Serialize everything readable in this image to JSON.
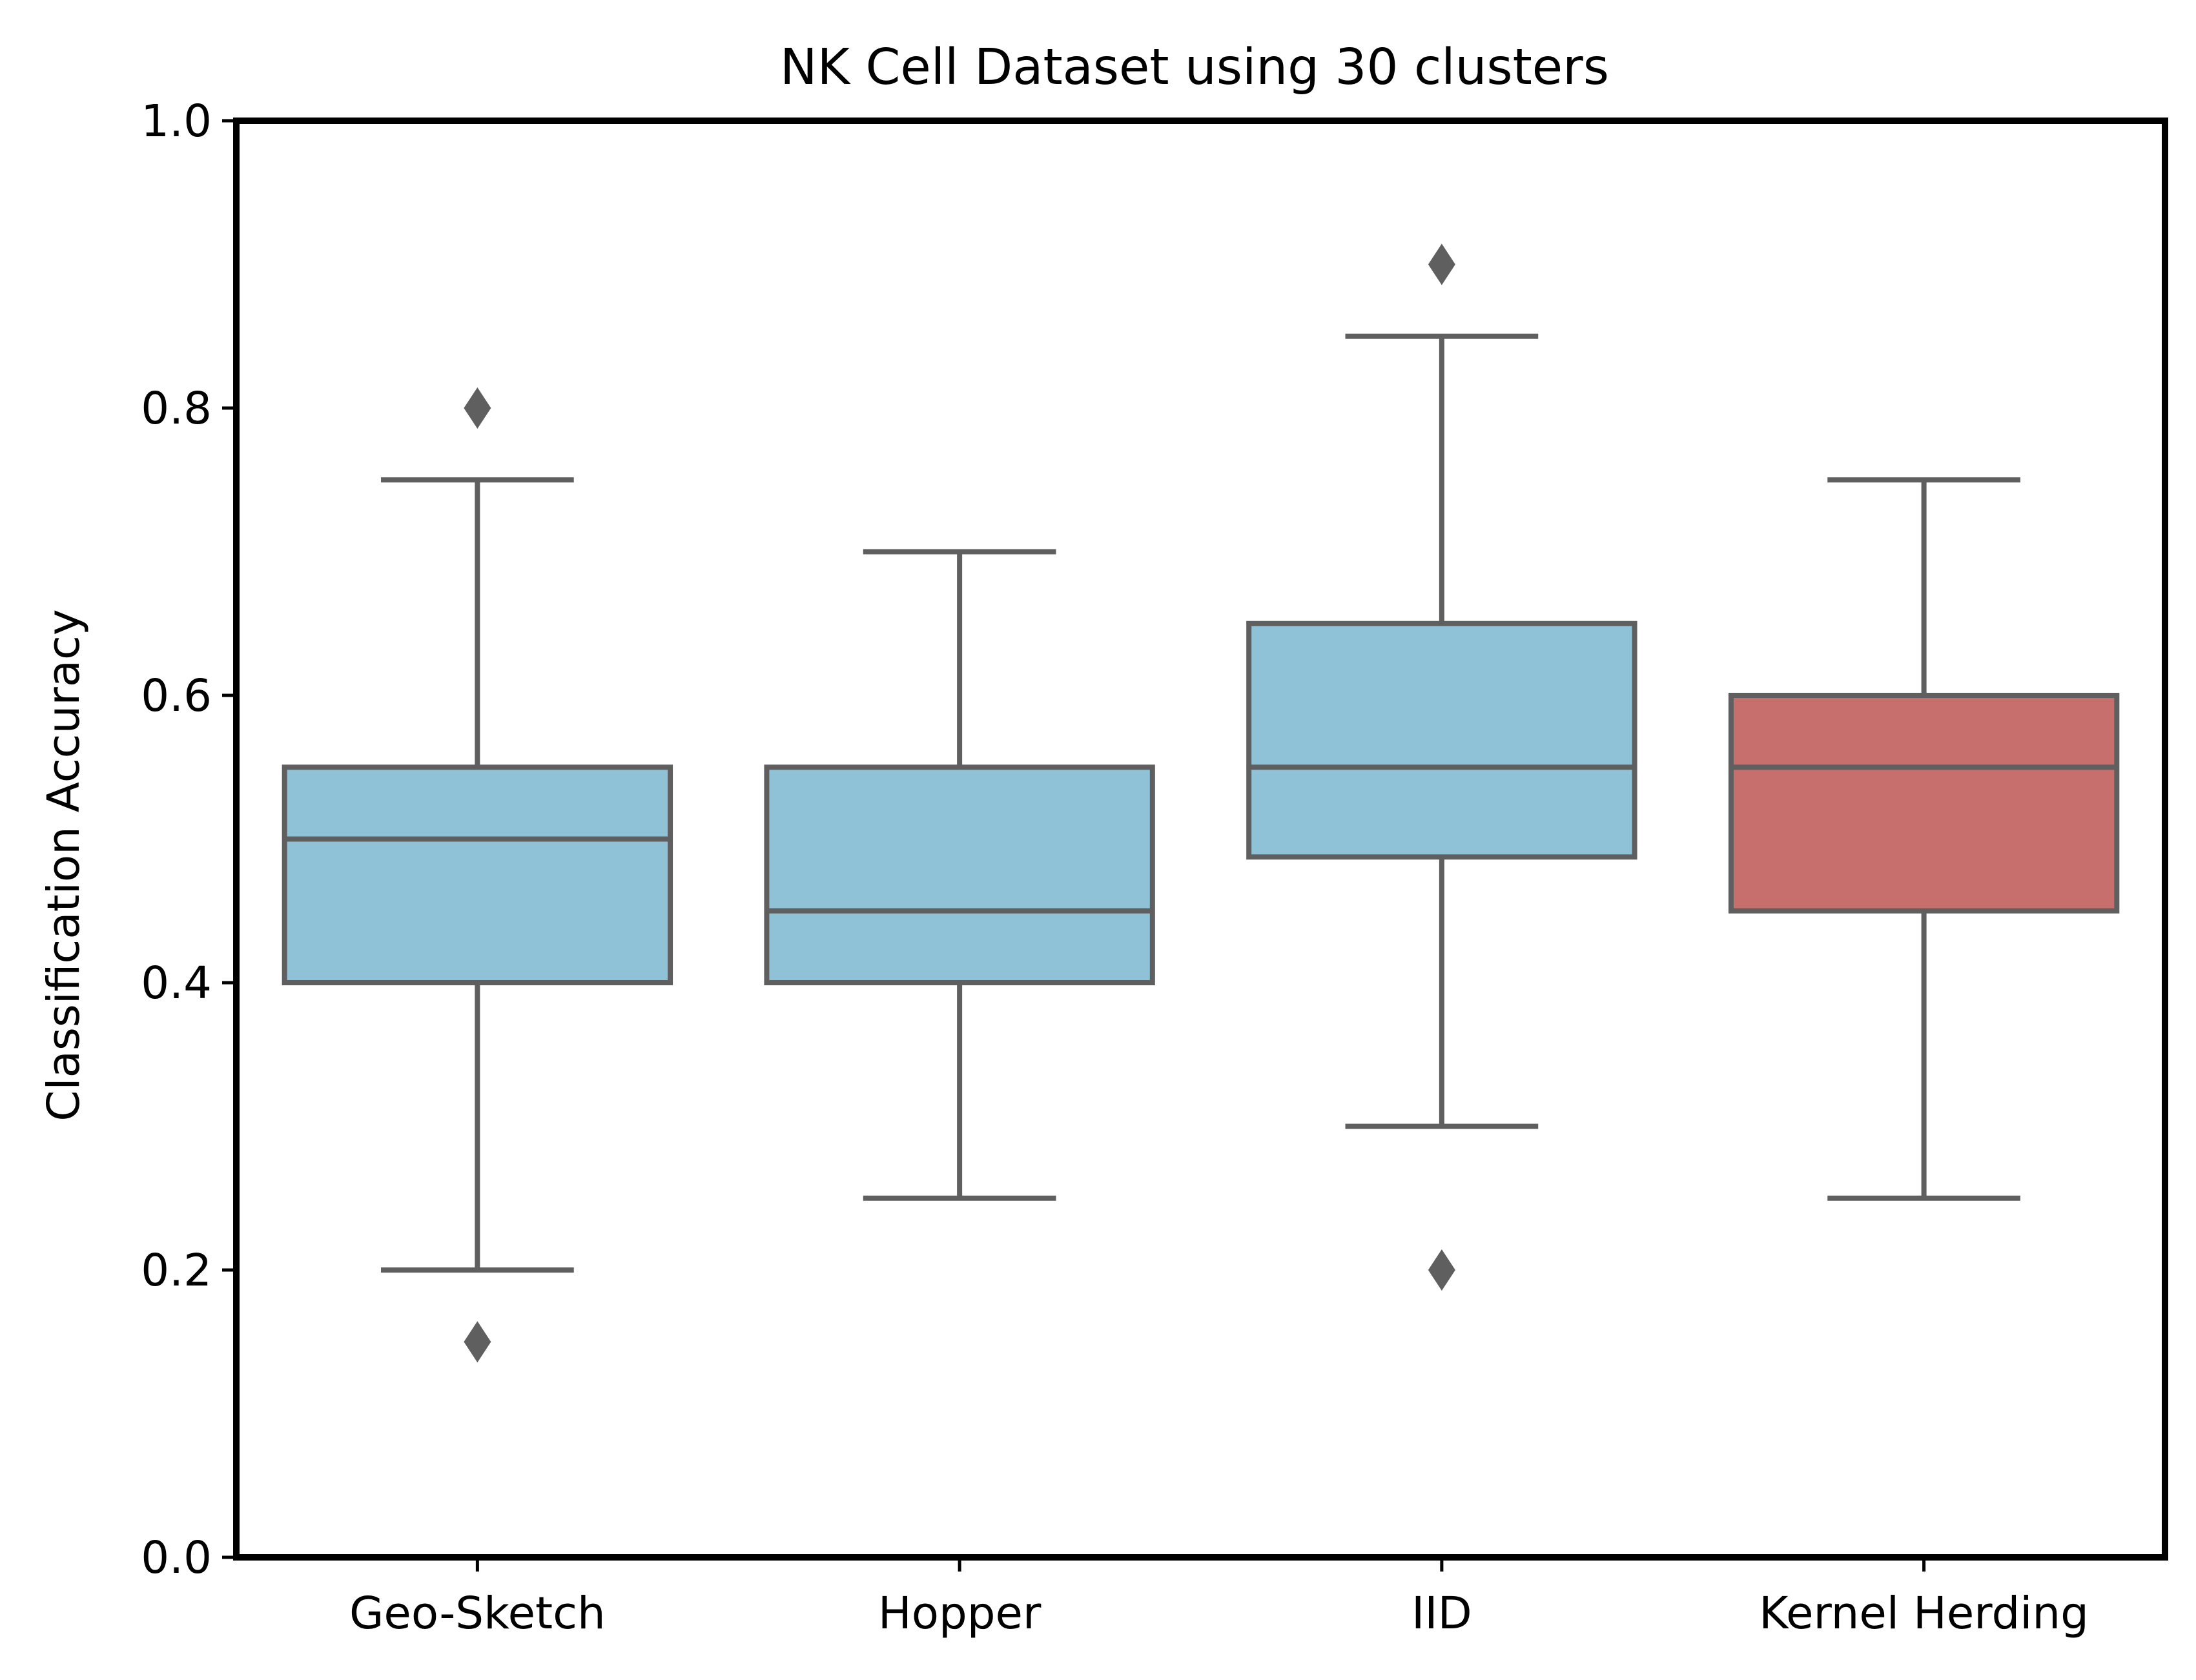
{
  "chart_data": {
    "type": "box",
    "title": "NK Cell Dataset using 30 clusters",
    "xlabel": "",
    "ylabel": "Classification Accuracy",
    "ylim": [
      0.0,
      1.0
    ],
    "yticks": [
      "0.0",
      "0.2",
      "0.4",
      "0.6",
      "0.8",
      "1.0"
    ],
    "grid": false,
    "categories": [
      "Geo-Sketch",
      "Hopper",
      "IID",
      "Kernel Herding"
    ],
    "boxes": [
      {
        "category": "Geo-Sketch",
        "whisker_low": 0.2,
        "q1": 0.4,
        "median": 0.5,
        "q3": 0.55,
        "whisker_high": 0.75,
        "outliers": [
          0.8,
          0.15
        ],
        "color": "#8fc1d7"
      },
      {
        "category": "Hopper",
        "whisker_low": 0.25,
        "q1": 0.4,
        "median": 0.45,
        "q3": 0.55,
        "whisker_high": 0.7,
        "outliers": [],
        "color": "#8fc1d7"
      },
      {
        "category": "IID",
        "whisker_low": 0.3,
        "q1": 0.4875,
        "median": 0.55,
        "q3": 0.65,
        "whisker_high": 0.85,
        "outliers": [
          0.9,
          0.2
        ],
        "color": "#8fc1d7"
      },
      {
        "category": "Kernel Herding",
        "whisker_low": 0.25,
        "q1": 0.45,
        "median": 0.55,
        "q3": 0.6,
        "whisker_high": 0.75,
        "outliers": [],
        "color": "#c66f6d"
      }
    ],
    "line_color": "#5f5f5f"
  }
}
